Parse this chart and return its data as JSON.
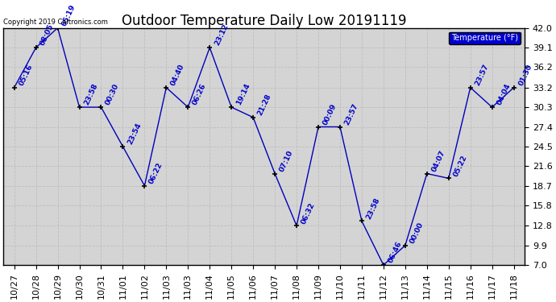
{
  "title": "Outdoor Temperature Daily Low 20191119",
  "copyright": "Copyright 2019 Caltronics.com",
  "legend_label": "Temperature (°F)",
  "x_labels": [
    "10/27",
    "10/28",
    "10/29",
    "10/30",
    "10/31",
    "11/01",
    "11/02",
    "11/03",
    "11/03",
    "11/04",
    "11/05",
    "11/06",
    "11/07",
    "11/08",
    "11/09",
    "11/10",
    "11/11",
    "11/12",
    "11/13",
    "11/14",
    "11/15",
    "11/16",
    "11/17",
    "11/18"
  ],
  "y_values": [
    33.2,
    39.1,
    42.0,
    30.3,
    30.3,
    24.5,
    18.7,
    33.2,
    30.3,
    39.1,
    30.3,
    28.8,
    20.5,
    12.8,
    27.4,
    27.4,
    13.5,
    7.0,
    9.9,
    20.5,
    19.8,
    33.2,
    30.3,
    33.2
  ],
  "point_labels": [
    "05:16",
    "08:05",
    "05:19",
    "23:58",
    "00:30",
    "23:54",
    "06:22",
    "04:40",
    "06:26",
    "23:12",
    "19:14",
    "21:28",
    "07:10",
    "06:32",
    "00:09",
    "23:57",
    "23:58",
    "06:46",
    "00:00",
    "04:07",
    "05:22",
    "23:57",
    "04:04",
    "01:30"
  ],
  "ylim_min": 7.0,
  "ylim_max": 42.0,
  "yticks": [
    7.0,
    9.9,
    12.8,
    15.8,
    18.7,
    21.6,
    24.5,
    27.4,
    30.3,
    33.2,
    36.2,
    39.1,
    42.0
  ],
  "line_color": "#0000bb",
  "marker_color": "#000000",
  "fig_bg_color": "#ffffff",
  "plot_bg_color": "#d4d4d4",
  "grid_color": "#bbbbbb",
  "title_color": "#000000",
  "label_color": "#0000cc",
  "legend_bg": "#0000cc",
  "legend_text_color": "#ffffff",
  "title_fontsize": 12,
  "tick_fontsize": 8,
  "label_fontsize": 6.5,
  "copyright_fontsize": 6
}
